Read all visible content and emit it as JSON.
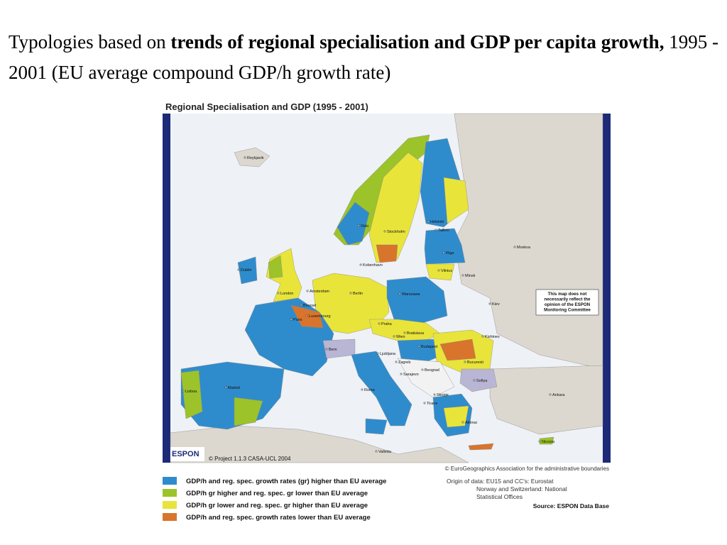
{
  "header": {
    "text_before": "Typologies based on ",
    "bold": "trends of regional specialisation and GDP per capita growth,",
    "text_after": " 1995 - 2001 (EU average compound GDP/h growth rate)"
  },
  "map": {
    "title": "Regional Specialisation and GDP (1995 - 2001)",
    "cities": [
      "Reykjavik",
      "Oslo",
      "Helsinki",
      "Stockholm",
      "Tallinn",
      "Moskva",
      "Riga",
      "Dublin",
      "Kobenhavn",
      "Vilnius",
      "Minsk",
      "London",
      "Amsterdam",
      "Berlin",
      "Warszawa",
      "Brussel",
      "Luxembourg",
      "Paris",
      "Kiev",
      "Praha",
      "Wien",
      "Bratislava",
      "Kishinev",
      "Bern",
      "Budapest",
      "Ljubljana",
      "Zagreb",
      "Bucuresti",
      "Sarajevo",
      "Beograd",
      "Sofiya",
      "Madrid",
      "Lisboa",
      "Roma",
      "Skopje",
      "Tirane",
      "Ankara",
      "Athinai",
      "Valletta",
      "Nicosia"
    ],
    "note": [
      "This map does not",
      "necessarily reflect the",
      "opinion of the ESPON",
      "Monitoring Committee"
    ],
    "logo": "ESPON",
    "copyright": "© Project 1.1.3 CASA-UCL 2004",
    "boundaries": "© EuroGeographics Association for the administrative boundaries"
  },
  "legend": [
    {
      "label": "GDP/h and reg. spec. growth rates (gr) higher than EU average",
      "color": "#2f8ccc"
    },
    {
      "label": "GDP/h gr higher and reg. spec. gr lower than EU average",
      "color": "#9cc32a"
    },
    {
      "label": "GDP/h gr lower and reg. spec. gr higher than EU average",
      "color": "#e8e43a"
    },
    {
      "label": "GDP/h and reg. spec. growth rates lower than EU average",
      "color": "#d9742c"
    }
  ],
  "source": {
    "lines": [
      "Origin of data: EU15 and CC's: Eurostat",
      "Norway and Switzerland: National",
      "Statistical Offices"
    ],
    "base": "Source: ESPON Data Base"
  }
}
